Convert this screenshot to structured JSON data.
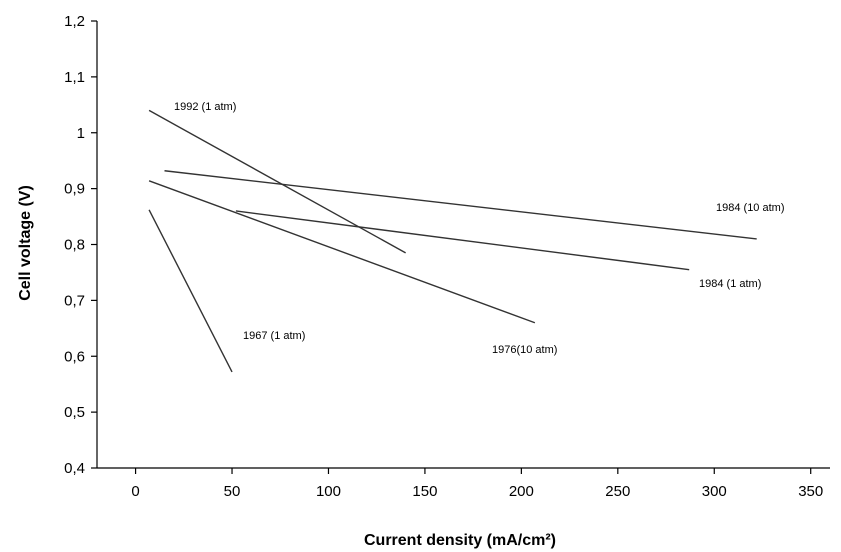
{
  "chart_data": {
    "type": "line",
    "xlabel": "Current density (mA/cm²)",
    "ylabel": "Cell voltage (V)",
    "xlim": [
      -20,
      360
    ],
    "ylim": [
      0.4,
      1.2
    ],
    "xticks": [
      0,
      50,
      100,
      150,
      200,
      250,
      300,
      350
    ],
    "yticks": [
      0.4,
      0.5,
      0.6,
      0.7,
      0.8,
      0.9,
      1.0,
      1.1,
      1.2
    ],
    "xtick_labels": [
      "0",
      "50",
      "100",
      "150",
      "200",
      "250",
      "300",
      "350"
    ],
    "ytick_labels": [
      "0,4",
      "0,5",
      "0,6",
      "0,7",
      "0,8",
      "0,9",
      "1",
      "1,1",
      "1,2"
    ],
    "grid": false,
    "legend": "none",
    "series": [
      {
        "name": "1992 (1 atm)",
        "x": [
          7,
          140
        ],
        "y": [
          1.04,
          0.785
        ]
      },
      {
        "name": "1984 (10 atm)",
        "x": [
          15,
          322
        ],
        "y": [
          0.932,
          0.81
        ]
      },
      {
        "name": "1984 (1 atm)",
        "x": [
          52,
          287
        ],
        "y": [
          0.86,
          0.755
        ]
      },
      {
        "name": "1976(10 atm)",
        "x": [
          7,
          207
        ],
        "y": [
          0.914,
          0.66
        ]
      },
      {
        "name": "1967 (1 atm)",
        "x": [
          7,
          50
        ],
        "y": [
          0.862,
          0.572
        ]
      }
    ]
  }
}
